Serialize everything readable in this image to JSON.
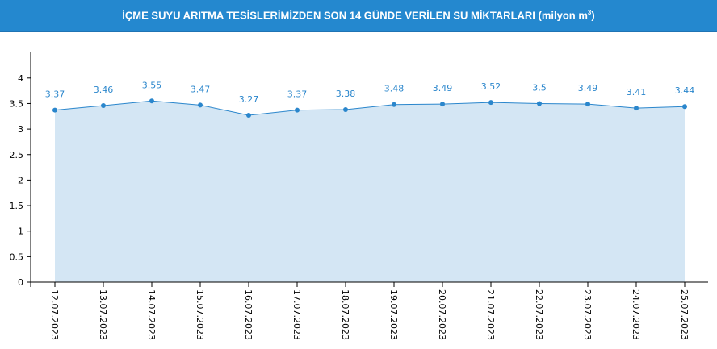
{
  "header": {
    "title": "İÇME SUYU ARITMA TESİSLERİMİZDEN SON 14 GÜNDE VERİLEN SU MİKTARLARI (milyon m",
    "sup": "3",
    "close": ")"
  },
  "chart_data": {
    "type": "area",
    "title": "İÇME SUYU ARITMA TESİSLERİMİZDEN SON 14 GÜNDE VERİLEN SU MİKTARLARI (milyon m3)",
    "categories": [
      "12.07.2023",
      "13.07.2023",
      "14.07.2023",
      "15.07.2023",
      "16.07.2023",
      "17.07.2023",
      "18.07.2023",
      "19.07.2023",
      "20.07.2023",
      "21.07.2023",
      "22.07.2023",
      "23.07.2023",
      "24.07.2023",
      "25.07.2023"
    ],
    "values": [
      3.37,
      3.46,
      3.55,
      3.47,
      3.27,
      3.37,
      3.38,
      3.48,
      3.49,
      3.52,
      3.5,
      3.49,
      3.41,
      3.44
    ],
    "data_labels": [
      "3.37",
      "3.46",
      "3.55",
      "3.47",
      "3.27",
      "3.37",
      "3.38",
      "3.48",
      "3.49",
      "3.52",
      "3.5",
      "3.49",
      "3.41",
      "3.44"
    ],
    "yticks": [
      "0",
      "0.5",
      "1",
      "1.5",
      "2",
      "2.5",
      "3",
      "3.5",
      "4"
    ],
    "ylim": [
      0,
      4.5
    ],
    "xlabel": "",
    "ylabel": "",
    "colors": {
      "line": "#2a86cc",
      "fill": "#d4e6f4",
      "label": "#2a86cc"
    }
  }
}
